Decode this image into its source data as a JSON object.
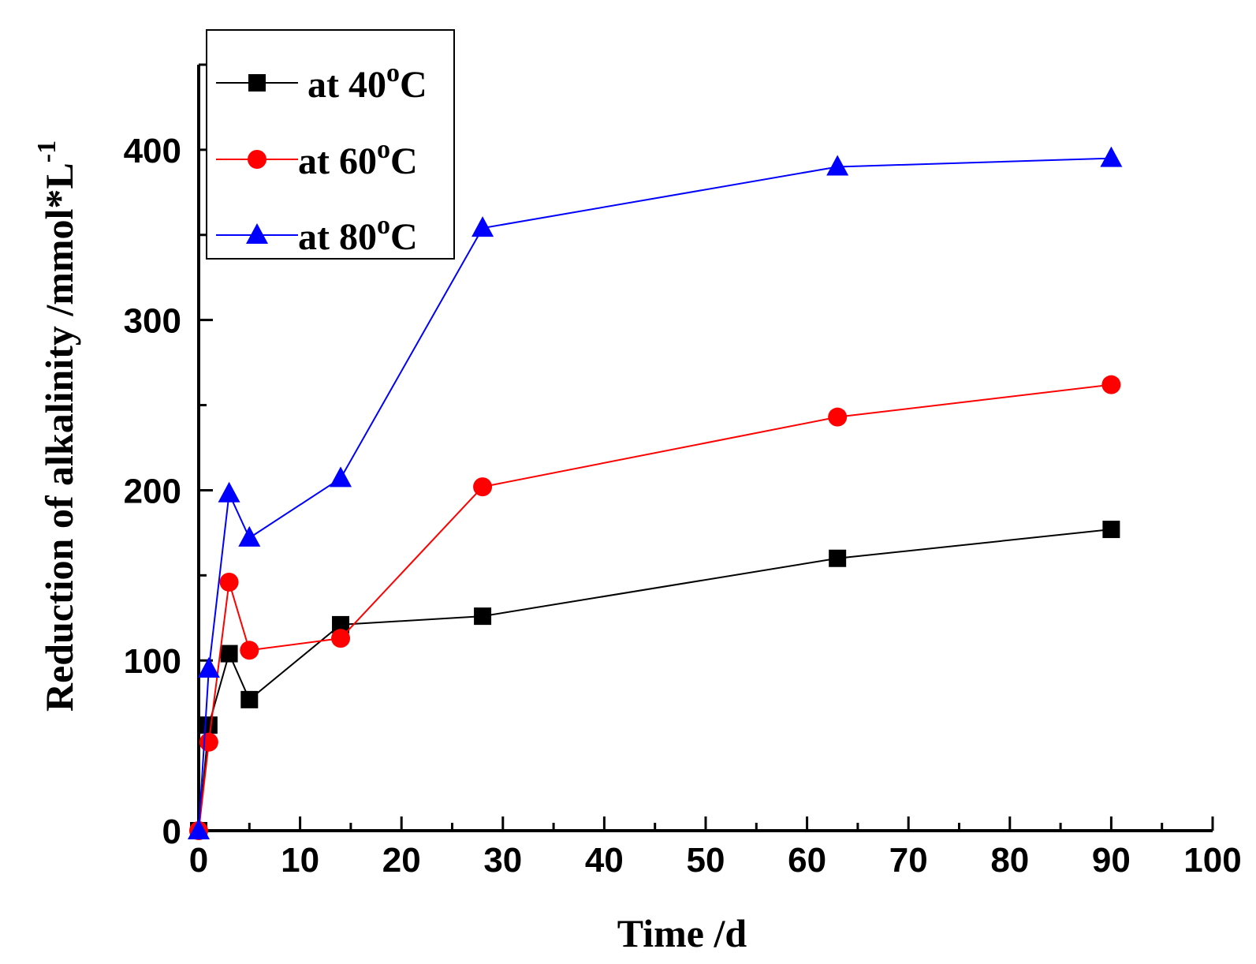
{
  "chart_data": {
    "type": "line",
    "title": "",
    "xlabel": "Time /d",
    "ylabel": "Reduction of alkalinity /mmol*L",
    "ylabel_sup": "-1",
    "xlim": [
      0,
      100
    ],
    "ylim": [
      0,
      450
    ],
    "xticks": [
      0,
      10,
      20,
      30,
      40,
      50,
      60,
      70,
      80,
      90,
      100
    ],
    "yticks": [
      0,
      100,
      200,
      300,
      400
    ],
    "x": [
      0,
      1,
      3,
      5,
      14,
      28,
      63,
      90
    ],
    "series": [
      {
        "name": "at 40",
        "name_sup": "o",
        "name_suffix": "C",
        "color": "#000000",
        "marker": "square",
        "values": [
          0,
          62,
          104,
          77,
          121,
          126,
          160,
          177
        ]
      },
      {
        "name": "at  60",
        "name_sup": "o",
        "name_suffix": "C",
        "color": "#ff0000",
        "marker": "circle",
        "values": [
          0,
          52,
          146,
          106,
          113,
          202,
          243,
          262
        ]
      },
      {
        "name": "at  80",
        "name_sup": "o",
        "name_suffix": "C",
        "color": "#0000ff",
        "marker": "triangle",
        "values": [
          0,
          95,
          198,
          172,
          207,
          354,
          390,
          395
        ]
      }
    ],
    "legend_position": "top-left",
    "grid": false
  }
}
